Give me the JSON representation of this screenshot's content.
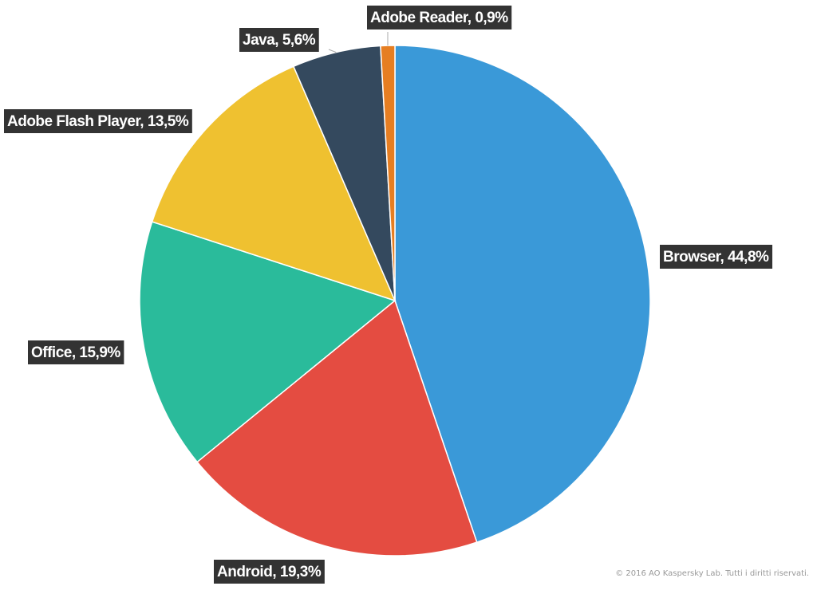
{
  "chart_data": {
    "type": "pie",
    "values": [
      44.8,
      19.3,
      15.9,
      13.5,
      5.6,
      0.9
    ],
    "value_labels": [
      "Browser, 44,8%",
      "Android, 19,3%",
      "Office, 15,9%",
      "Adobe Flash Player, 13,5%",
      "Java, 5,6%",
      "Adobe Reader, 0,9%"
    ],
    "colors": [
      "#3a99d8",
      "#e44c41",
      "#2abb9b",
      "#efc130",
      "#34495e",
      "#e67e22"
    ]
  },
  "footer": "© 2016 AO Kaspersky Lab. Tutti i diritti riservati."
}
